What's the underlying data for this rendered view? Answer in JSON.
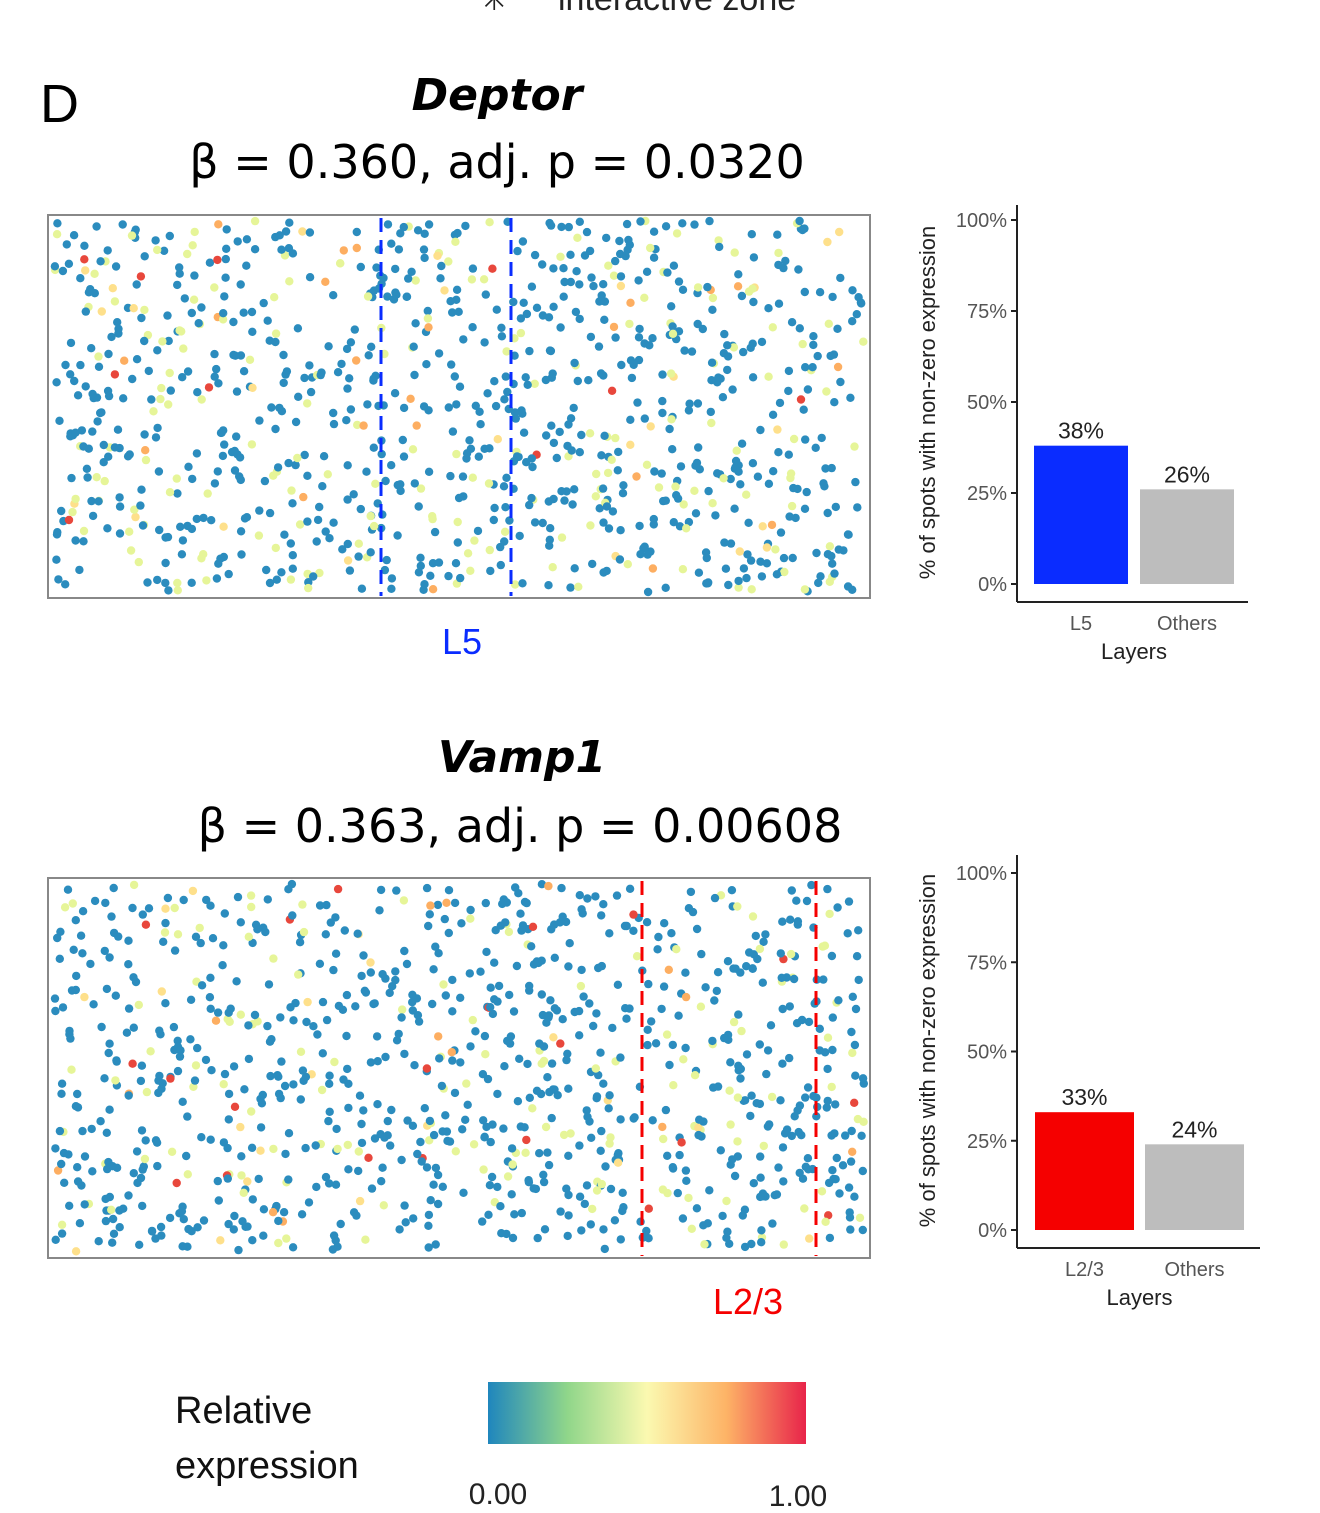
{
  "header_fragment": "interactive zone",
  "panel_letter": "D",
  "colors": {
    "low": "#2b83ba",
    "mid": "#ffffbf",
    "high": "#d7191c",
    "others": "#bdbdbd",
    "l5": "#0a2cff",
    "l23": "#f50000"
  },
  "legend": {
    "title_line1": "Relative",
    "title_line2": "expression",
    "min_label": "0.00",
    "max_label": "1.00"
  },
  "chart_data": [
    {
      "type": "bar",
      "gene": "Deptor",
      "stat_text": "β = 0.360, adj. p = 0.0320",
      "layer_label": "L5",
      "categories": [
        "L5",
        "Others"
      ],
      "values": [
        38,
        26
      ],
      "value_labels": [
        "38%",
        "26%"
      ],
      "xlabel": "Layers",
      "ylabel": "% of spots with non-zero expression",
      "yticks": [
        "0%",
        "25%",
        "50%",
        "75%",
        "100%"
      ],
      "ylim": [
        0,
        100
      ]
    },
    {
      "type": "bar",
      "gene": "Vamp1",
      "stat_text": "β = 0.363, adj. p = 0.00608",
      "layer_label": "L2/3",
      "categories": [
        "L2/3",
        "Others"
      ],
      "values": [
        33,
        24
      ],
      "value_labels": [
        "33%",
        "24%"
      ],
      "xlabel": "Layers",
      "ylabel": "% of spots with non-zero expression",
      "yticks": [
        "0%",
        "25%",
        "50%",
        "75%",
        "100%"
      ],
      "ylim": [
        0,
        100
      ]
    }
  ]
}
